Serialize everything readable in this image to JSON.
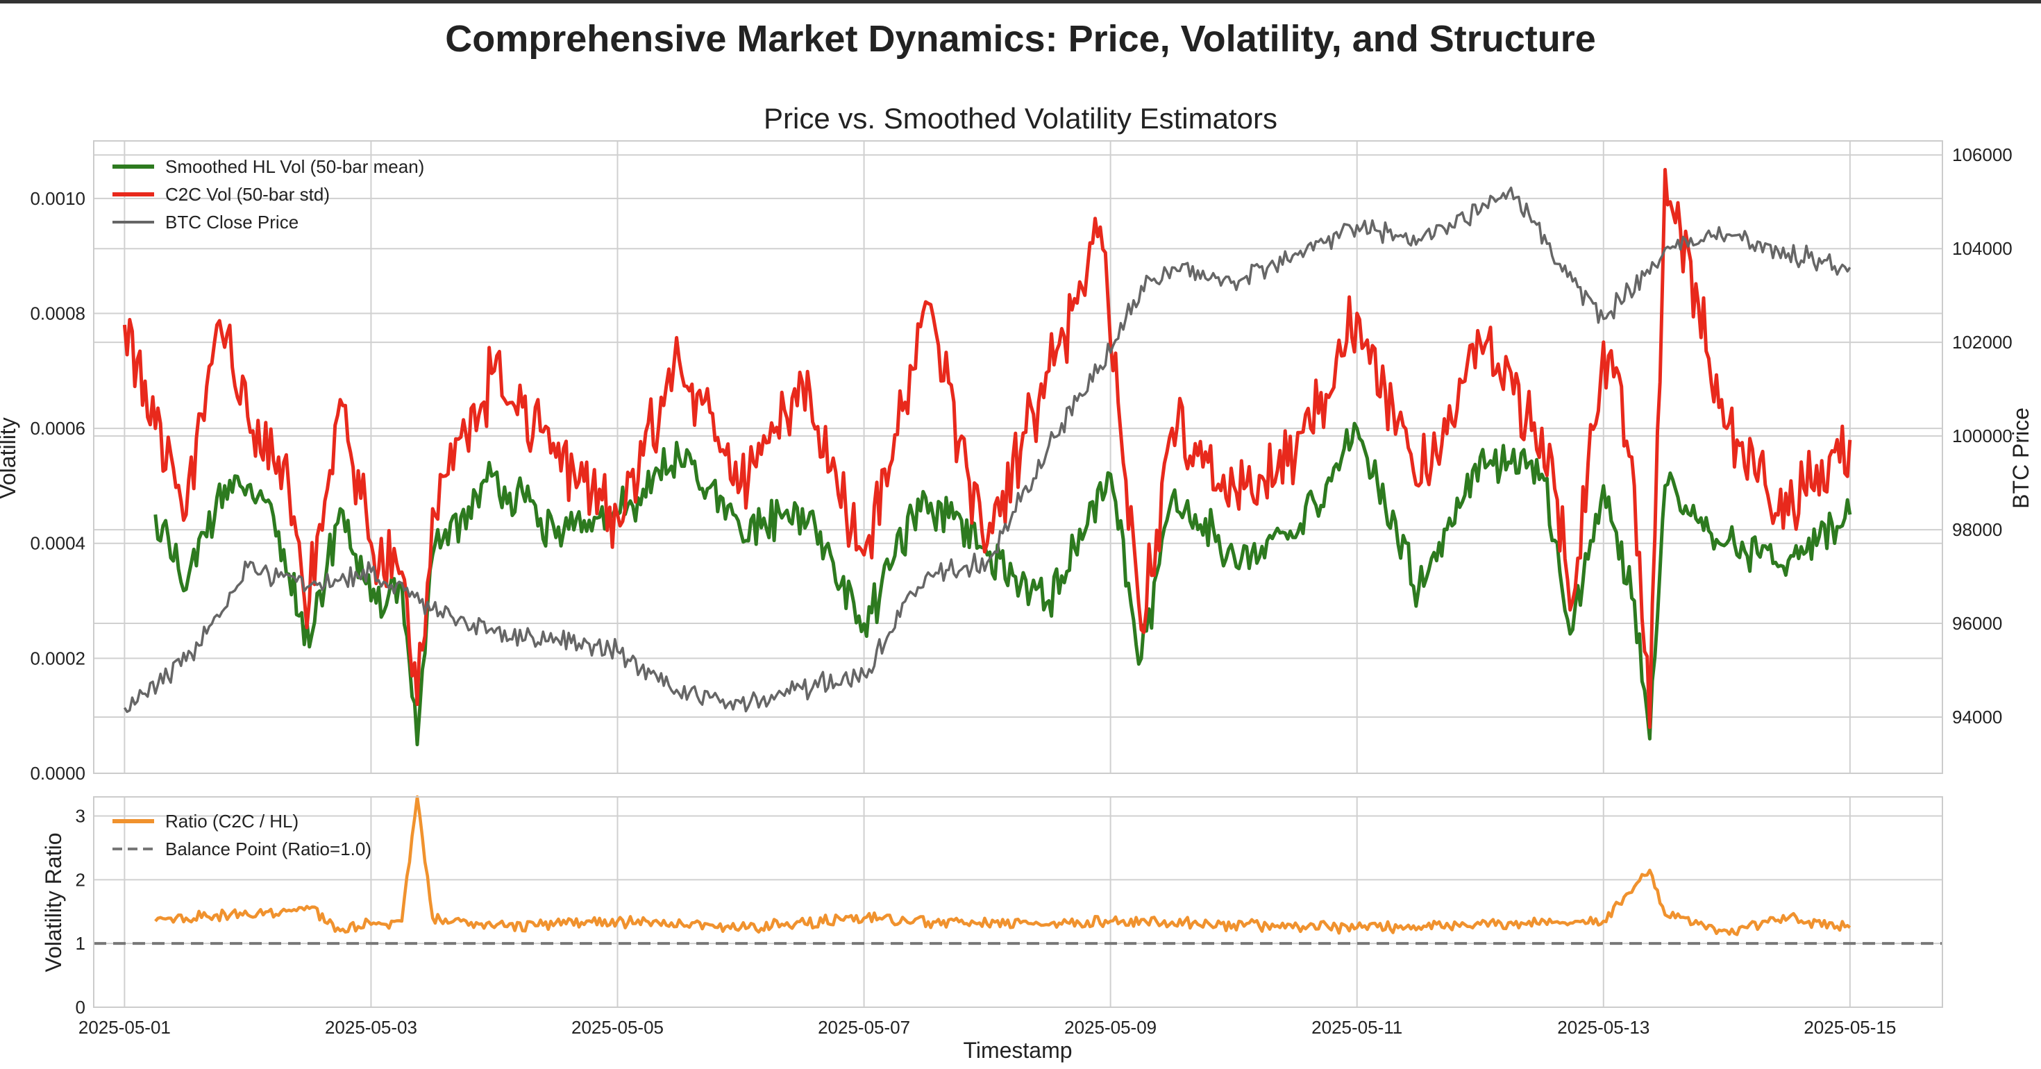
{
  "figure": {
    "suptitle": "Comprehensive Market Dynamics: Price, Volatility, and Structure",
    "xlabel": "Timestamp"
  },
  "chart_data": [
    {
      "type": "line",
      "title": "Price vs. Smoothed Volatility Estimators",
      "xlabel": "",
      "ylabel": "Volatility",
      "y2label": "BTC Price",
      "xlim": [
        "2025-04-30T18:00",
        "2025-05-15T18:00"
      ],
      "ylim": [
        0,
        0.0011
      ],
      "y2lim": [
        92800,
        106300
      ],
      "yticks": [
        0.0,
        0.0002,
        0.0004,
        0.0006,
        0.0008,
        0.001
      ],
      "yticklabels": [
        "0.0000",
        "0.0002",
        "0.0004",
        "0.0006",
        "0.0008",
        "0.0010"
      ],
      "y2ticks": [
        94000,
        96000,
        98000,
        100000,
        102000,
        104000,
        106000
      ],
      "y2ticklabels": [
        "94000",
        "96000",
        "98000",
        "100000",
        "102000",
        "104000",
        "106000"
      ],
      "xticks": [
        "2025-05-01",
        "2025-05-03",
        "2025-05-05",
        "2025-05-07",
        "2025-05-09",
        "2025-05-11",
        "2025-05-13",
        "2025-05-15"
      ],
      "xticklabels": [
        "2025-05-01",
        "2025-05-03",
        "2025-05-05",
        "2025-05-07",
        "2025-05-09",
        "2025-05-11",
        "2025-05-13",
        "2025-05-15"
      ],
      "grid": true,
      "legend": "top-left",
      "legend_labels": [
        "Smoothed HL Vol (50-bar mean)",
        "C2C Vol (50-bar std)",
        "BTC Close Price"
      ],
      "series": [
        {
          "name": "Smoothed HL Vol (50-bar mean)",
          "axis": "left",
          "color": "#2d7a1f",
          "x": [
            "2025-05-01T06:00",
            "2025-05-01T12:00",
            "2025-05-01T18:00",
            "2025-05-02T00:00",
            "2025-05-02T06:00",
            "2025-05-02T12:00",
            "2025-05-02T18:00",
            "2025-05-03T00:00",
            "2025-05-03T06:00",
            "2025-05-03T09:00",
            "2025-05-03T12:00",
            "2025-05-04T00:00",
            "2025-05-04T12:00",
            "2025-05-05T00:00",
            "2025-05-05T12:00",
            "2025-05-06T00:00",
            "2025-05-06T12:00",
            "2025-05-07T00:00",
            "2025-05-07T12:00",
            "2025-05-08T00:00",
            "2025-05-08T12:00",
            "2025-05-09T00:00",
            "2025-05-09T06:00",
            "2025-05-09T12:00",
            "2025-05-10T00:00",
            "2025-05-10T12:00",
            "2025-05-11T00:00",
            "2025-05-11T12:00",
            "2025-05-12T00:00",
            "2025-05-12T12:00",
            "2025-05-12T18:00",
            "2025-05-13T00:00",
            "2025-05-13T06:00",
            "2025-05-13T09:00",
            "2025-05-13T12:00",
            "2025-05-14T00:00",
            "2025-05-14T12:00",
            "2025-05-15T00:00"
          ],
          "values": [
            0.00045,
            0.00032,
            0.00048,
            0.0005,
            0.00042,
            0.00022,
            0.00046,
            0.0003,
            0.00033,
            5e-05,
            0.00038,
            0.00052,
            0.00041,
            0.00045,
            0.00055,
            0.00042,
            0.00046,
            0.00026,
            0.00048,
            0.00038,
            0.0003,
            0.00052,
            0.0002,
            0.00048,
            0.00038,
            0.00041,
            0.0006,
            0.00032,
            0.00055,
            0.00052,
            0.00025,
            0.0005,
            0.0003,
            6e-05,
            0.0005,
            0.0004,
            0.00037,
            0.00045
          ]
        },
        {
          "name": "C2C Vol (50-bar std)",
          "axis": "left",
          "color": "#e8291c",
          "x": [
            "2025-05-01T00:00",
            "2025-05-01T06:00",
            "2025-05-01T12:00",
            "2025-05-01T18:00",
            "2025-05-02T00:00",
            "2025-05-02T06:00",
            "2025-05-02T12:00",
            "2025-05-02T18:00",
            "2025-05-03T00:00",
            "2025-05-03T06:00",
            "2025-05-03T09:00",
            "2025-05-03T12:00",
            "2025-05-04T00:00",
            "2025-05-04T12:00",
            "2025-05-05T00:00",
            "2025-05-05T12:00",
            "2025-05-06T00:00",
            "2025-05-06T12:00",
            "2025-05-07T00:00",
            "2025-05-07T12:00",
            "2025-05-08T00:00",
            "2025-05-08T12:00",
            "2025-05-08T22:00",
            "2025-05-09T06:00",
            "2025-05-09T12:00",
            "2025-05-10T00:00",
            "2025-05-10T12:00",
            "2025-05-11T00:00",
            "2025-05-11T12:00",
            "2025-05-12T00:00",
            "2025-05-12T12:00",
            "2025-05-12T18:00",
            "2025-05-13T00:00",
            "2025-05-13T06:00",
            "2025-05-13T09:00",
            "2025-05-13T12:00",
            "2025-05-14T00:00",
            "2025-05-14T12:00",
            "2025-05-15T00:00"
          ],
          "values": [
            0.00078,
            0.0006,
            0.00045,
            0.00078,
            0.00062,
            0.00055,
            0.0003,
            0.00065,
            0.0004,
            0.00035,
            0.00012,
            0.00046,
            0.0007,
            0.00055,
            0.00045,
            0.00072,
            0.0005,
            0.00068,
            0.00038,
            0.00082,
            0.0004,
            0.0007,
            0.00095,
            0.00025,
            0.0006,
            0.0005,
            0.00055,
            0.0008,
            0.0005,
            0.00075,
            0.0006,
            0.0003,
            0.00075,
            0.0005,
            8e-05,
            0.00105,
            0.0006,
            0.00045,
            0.00058
          ]
        },
        {
          "name": "BTC Close Price",
          "axis": "right",
          "color": "#666666",
          "x": [
            "2025-05-01T00:00",
            "2025-05-01T12:00",
            "2025-05-02T00:00",
            "2025-05-02T12:00",
            "2025-05-03T00:00",
            "2025-05-03T12:00",
            "2025-05-04T00:00",
            "2025-05-04T12:00",
            "2025-05-05T00:00",
            "2025-05-05T12:00",
            "2025-05-06T00:00",
            "2025-05-06T12:00",
            "2025-05-07T00:00",
            "2025-05-07T12:00",
            "2025-05-08T00:00",
            "2025-05-08T12:00",
            "2025-05-08T22:00",
            "2025-05-09T06:00",
            "2025-05-09T12:00",
            "2025-05-10T00:00",
            "2025-05-10T12:00",
            "2025-05-11T00:00",
            "2025-05-11T12:00",
            "2025-05-12T00:00",
            "2025-05-12T06:00",
            "2025-05-12T18:00",
            "2025-05-13T00:00",
            "2025-05-13T12:00",
            "2025-05-14T00:00",
            "2025-05-14T12:00",
            "2025-05-15T00:00"
          ],
          "values": [
            94200,
            95200,
            97200,
            96800,
            97100,
            96300,
            95800,
            95700,
            95400,
            94500,
            94300,
            94600,
            94900,
            97000,
            97300,
            99800,
            101500,
            103200,
            103600,
            103300,
            103900,
            104500,
            104200,
            104800,
            105300,
            103300,
            102500,
            104000,
            104300,
            103900,
            103600
          ]
        }
      ]
    },
    {
      "type": "line",
      "title": "",
      "xlabel": "Timestamp",
      "ylabel": "Volatility Ratio",
      "xlim": [
        "2025-04-30T18:00",
        "2025-05-15T18:00"
      ],
      "ylim": [
        0,
        3.3
      ],
      "yticks": [
        0,
        1,
        2,
        3
      ],
      "yticklabels": [
        "0",
        "1",
        "2",
        "3"
      ],
      "grid": true,
      "legend": "top-left",
      "legend_labels": [
        "Ratio (C2C / HL)",
        "Balance Point (Ratio=1.0)"
      ],
      "series": [
        {
          "name": "Ratio (C2C / HL)",
          "color": "#f0922e",
          "x": [
            "2025-05-01T06:00",
            "2025-05-01T12:00",
            "2025-05-02T00:00",
            "2025-05-02T12:00",
            "2025-05-02T18:00",
            "2025-05-03T00:00",
            "2025-05-03T06:00",
            "2025-05-03T09:00",
            "2025-05-03T12:00",
            "2025-05-04T00:00",
            "2025-05-05T00:00",
            "2025-05-06T00:00",
            "2025-05-07T00:00",
            "2025-05-08T00:00",
            "2025-05-09T00:00",
            "2025-05-10T00:00",
            "2025-05-11T00:00",
            "2025-05-12T00:00",
            "2025-05-13T00:00",
            "2025-05-13T09:00",
            "2025-05-13T12:00",
            "2025-05-14T00:00",
            "2025-05-14T12:00",
            "2025-05-15T00:00"
          ],
          "values": [
            1.35,
            1.4,
            1.45,
            1.55,
            1.2,
            1.3,
            1.35,
            3.3,
            1.4,
            1.25,
            1.35,
            1.25,
            1.4,
            1.3,
            1.35,
            1.3,
            1.25,
            1.3,
            1.35,
            2.15,
            1.45,
            1.2,
            1.4,
            1.25
          ]
        },
        {
          "name": "Balance Point (Ratio=1.0)",
          "color": "#777777",
          "dashed": true,
          "x": [
            "2025-04-30T18:00",
            "2025-05-15T18:00"
          ],
          "values": [
            1.0,
            1.0
          ]
        }
      ]
    }
  ]
}
